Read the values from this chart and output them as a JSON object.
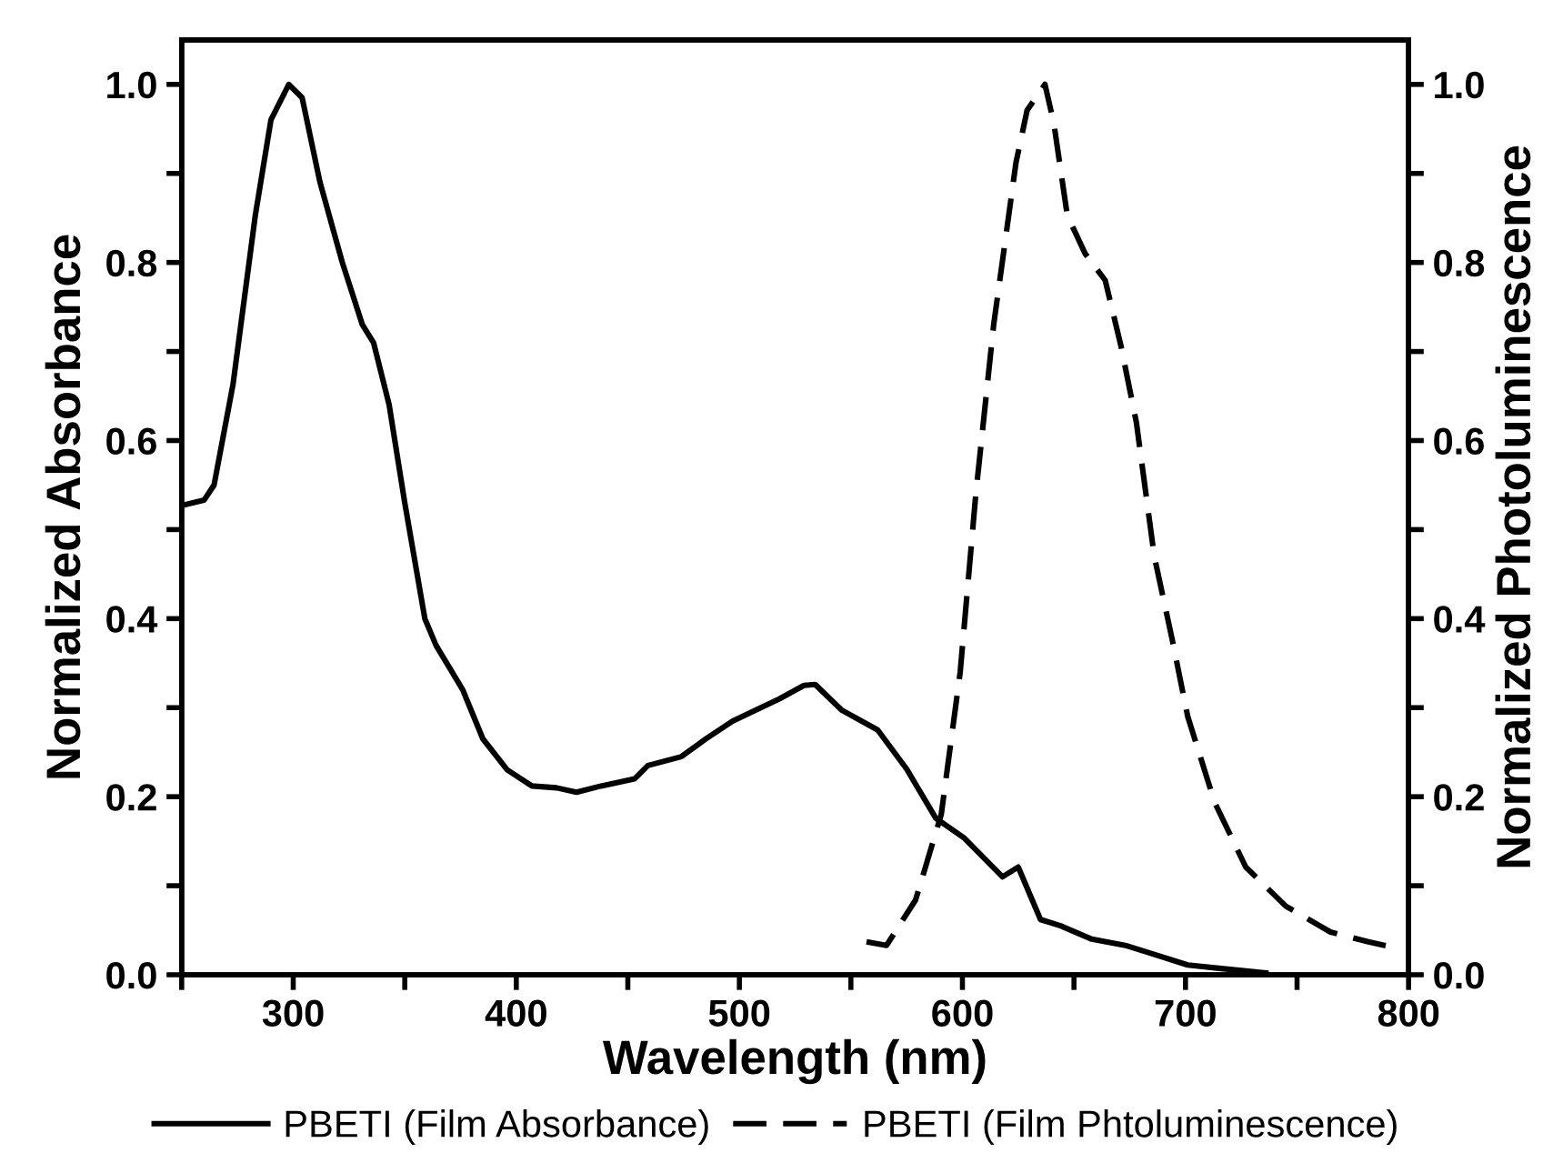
{
  "chart_data": {
    "type": "line",
    "xlabel": "Wavelength (nm)",
    "ylabel": "Normalized Absorbance",
    "y2label": "Normalized Photoluminescence",
    "xlim": [
      250,
      800
    ],
    "xticks": [
      {
        "value": 250,
        "label": null
      },
      300,
      {
        "value": 350,
        "label": null
      },
      400,
      {
        "value": 450,
        "label": null
      },
      500,
      {
        "value": 550,
        "label": null
      },
      600,
      {
        "value": 650,
        "label": null
      },
      700,
      {
        "value": 750,
        "label": null
      },
      800
    ],
    "ylim": [
      0,
      1.05
    ],
    "yticks": [
      {
        "value": 0,
        "label": "0.0"
      },
      {
        "value": 0.1,
        "label": null
      },
      0.2,
      {
        "value": 0.3,
        "label": null
      },
      0.4,
      {
        "value": 0.5,
        "label": null
      },
      0.6,
      {
        "value": 0.7,
        "label": null
      },
      0.8,
      {
        "value": 0.9,
        "label": null
      },
      {
        "value": 1,
        "label": "1.0"
      }
    ],
    "y2lim": [
      0,
      1.05
    ],
    "y2ticks": [
      {
        "value": 0,
        "label": "0.0"
      },
      {
        "value": 0.1,
        "label": null
      },
      0.2,
      {
        "value": 0.3,
        "label": null
      },
      0.4,
      {
        "value": 0.5,
        "label": null
      },
      0.6,
      {
        "value": 0.7,
        "label": null
      },
      0.8,
      {
        "value": 0.9,
        "label": null
      },
      {
        "value": 1,
        "label": "1.0"
      }
    ],
    "grid": false,
    "legend": "bottom",
    "marker": "none",
    "series": [
      {
        "name": "PBETI (Film Absorbance)",
        "color": "#000000",
        "line_style": "solid",
        "x": [
          250,
          260,
          264.5,
          273,
          283,
          290,
          298,
          304,
          312,
          322,
          331,
          336,
          343,
          350,
          359,
          364,
          376,
          385,
          396,
          407,
          418,
          427,
          438,
          453,
          459,
          474,
          485,
          497,
          518,
          529,
          534,
          546,
          562,
          575,
          588,
          600.6,
          618,
          625,
          635,
          644,
          658,
          673,
          687,
          701,
          716,
          736
        ],
        "values": [
          0.527,
          0.533,
          0.55,
          0.663,
          0.853,
          0.96,
          1.0,
          0.985,
          0.89,
          0.8,
          0.73,
          0.71,
          0.64,
          0.53,
          0.4,
          0.37,
          0.32,
          0.265,
          0.23,
          0.212,
          0.21,
          0.205,
          0.212,
          0.22,
          0.235,
          0.245,
          0.265,
          0.285,
          0.31,
          0.325,
          0.326,
          0.297,
          0.275,
          0.231,
          0.176,
          0.154,
          0.11,
          0.121,
          0.062,
          0.055,
          0.04,
          0.033,
          0.022,
          0.011,
          0.007,
          0.002
        ]
      },
      {
        "name": "PBETI (Film Phtoluminescence)",
        "color": "#000000",
        "line_style": "dashed",
        "x": [
          557,
          566,
          579,
          590.5,
          599,
          606,
          614,
          624,
          629,
          637,
          641,
          647,
          655,
          664,
          671,
          678,
          686,
          694,
          701,
          713,
          727,
          745,
          765,
          782,
          796.5
        ],
        "values": [
          0.037,
          0.033,
          0.084,
          0.18,
          0.34,
          0.54,
          0.73,
          0.912,
          0.971,
          1.0,
          0.956,
          0.853,
          0.81,
          0.78,
          0.707,
          0.62,
          0.47,
          0.377,
          0.29,
          0.194,
          0.121,
          0.077,
          0.048,
          0.037,
          0.029
        ]
      }
    ]
  }
}
